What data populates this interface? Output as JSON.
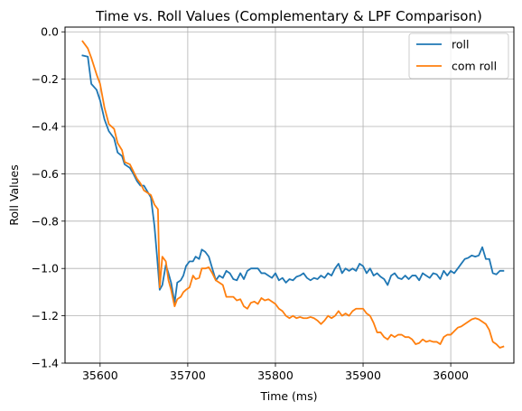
{
  "chart_data": {
    "type": "line",
    "title": "Time vs. Roll Values (Complementary & LPF Comparison)",
    "xlabel": "Time (ms)",
    "ylabel": "Roll Values",
    "xlim": [
      35560,
      36072
    ],
    "ylim": [
      -1.4,
      0.02
    ],
    "xticks": [
      35600,
      35700,
      35800,
      35900,
      36000
    ],
    "xtick_labels": [
      "35600",
      "35700",
      "35800",
      "35900",
      "36000"
    ],
    "yticks": [
      0.0,
      -0.2,
      -0.4,
      -0.6,
      -0.8,
      -1.0,
      -1.2,
      -1.4
    ],
    "ytick_labels": [
      "0.0",
      "−0.2",
      "−0.4",
      "−0.6",
      "−0.8",
      "−1.0",
      "−1.2",
      "−1.4"
    ],
    "grid": true,
    "legend_position": "top-right",
    "series": [
      {
        "name": "roll",
        "color": "#1f77b4",
        "points": [
          [
            35580,
            -0.1
          ],
          [
            35586,
            -0.105
          ],
          [
            35590,
            -0.22
          ],
          [
            35596,
            -0.245
          ],
          [
            35600,
            -0.29
          ],
          [
            35605,
            -0.37
          ],
          [
            35610,
            -0.42
          ],
          [
            35616,
            -0.45
          ],
          [
            35620,
            -0.51
          ],
          [
            35625,
            -0.525
          ],
          [
            35628,
            -0.56
          ],
          [
            35634,
            -0.575
          ],
          [
            35638,
            -0.6
          ],
          [
            35642,
            -0.63
          ],
          [
            35646,
            -0.65
          ],
          [
            35650,
            -0.65
          ],
          [
            35654,
            -0.675
          ],
          [
            35658,
            -0.7
          ],
          [
            35662,
            -0.82
          ],
          [
            35665,
            -0.95
          ],
          [
            35668,
            -1.09
          ],
          [
            35671,
            -1.07
          ],
          [
            35675,
            -0.985
          ],
          [
            35678,
            -1.02
          ],
          [
            35681,
            -1.06
          ],
          [
            35685,
            -1.145
          ],
          [
            35688,
            -1.06
          ],
          [
            35692,
            -1.05
          ],
          [
            35695,
            -1.03
          ],
          [
            35698,
            -0.99
          ],
          [
            35702,
            -0.97
          ],
          [
            35706,
            -0.97
          ],
          [
            35709,
            -0.95
          ],
          [
            35713,
            -0.96
          ],
          [
            35716,
            -0.92
          ],
          [
            35720,
            -0.93
          ],
          [
            35724,
            -0.95
          ],
          [
            35728,
            -1.0
          ],
          [
            35732,
            -1.05
          ],
          [
            35736,
            -1.03
          ],
          [
            35740,
            -1.04
          ],
          [
            35744,
            -1.01
          ],
          [
            35748,
            -1.02
          ],
          [
            35752,
            -1.045
          ],
          [
            35756,
            -1.05
          ],
          [
            35760,
            -1.02
          ],
          [
            35764,
            -1.045
          ],
          [
            35768,
            -1.01
          ],
          [
            35772,
            -1.0
          ],
          [
            35776,
            -1.0
          ],
          [
            35780,
            -1.0
          ],
          [
            35784,
            -1.02
          ],
          [
            35788,
            -1.02
          ],
          [
            35792,
            -1.03
          ],
          [
            35796,
            -1.04
          ],
          [
            35800,
            -1.02
          ],
          [
            35804,
            -1.05
          ],
          [
            35808,
            -1.04
          ],
          [
            35812,
            -1.06
          ],
          [
            35816,
            -1.045
          ],
          [
            35820,
            -1.05
          ],
          [
            35824,
            -1.035
          ],
          [
            35828,
            -1.03
          ],
          [
            35832,
            -1.02
          ],
          [
            35836,
            -1.04
          ],
          [
            35840,
            -1.05
          ],
          [
            35844,
            -1.04
          ],
          [
            35848,
            -1.045
          ],
          [
            35852,
            -1.03
          ],
          [
            35856,
            -1.04
          ],
          [
            35860,
            -1.02
          ],
          [
            35864,
            -1.03
          ],
          [
            35868,
            -1.0
          ],
          [
            35872,
            -0.98
          ],
          [
            35876,
            -1.02
          ],
          [
            35880,
            -1.0
          ],
          [
            35884,
            -1.01
          ],
          [
            35888,
            -1.0
          ],
          [
            35892,
            -1.01
          ],
          [
            35896,
            -0.98
          ],
          [
            35900,
            -0.99
          ],
          [
            35904,
            -1.02
          ],
          [
            35908,
            -1.0
          ],
          [
            35912,
            -1.03
          ],
          [
            35916,
            -1.02
          ],
          [
            35920,
            -1.035
          ],
          [
            35924,
            -1.045
          ],
          [
            35928,
            -1.07
          ],
          [
            35932,
            -1.03
          ],
          [
            35936,
            -1.02
          ],
          [
            35940,
            -1.04
          ],
          [
            35944,
            -1.045
          ],
          [
            35948,
            -1.03
          ],
          [
            35952,
            -1.045
          ],
          [
            35956,
            -1.03
          ],
          [
            35960,
            -1.03
          ],
          [
            35964,
            -1.05
          ],
          [
            35968,
            -1.02
          ],
          [
            35972,
            -1.03
          ],
          [
            35976,
            -1.04
          ],
          [
            35980,
            -1.02
          ],
          [
            35984,
            -1.025
          ],
          [
            35988,
            -1.045
          ],
          [
            35992,
            -1.01
          ],
          [
            35996,
            -1.03
          ],
          [
            36000,
            -1.01
          ],
          [
            36004,
            -1.02
          ],
          [
            36008,
            -1.0
          ],
          [
            36012,
            -0.98
          ],
          [
            36016,
            -0.96
          ],
          [
            36020,
            -0.955
          ],
          [
            36024,
            -0.945
          ],
          [
            36028,
            -0.95
          ],
          [
            36032,
            -0.945
          ],
          [
            36036,
            -0.91
          ],
          [
            36040,
            -0.96
          ],
          [
            36044,
            -0.96
          ],
          [
            36048,
            -1.02
          ],
          [
            36052,
            -1.025
          ],
          [
            36056,
            -1.01
          ],
          [
            36060,
            -1.01
          ]
        ]
      },
      {
        "name": "com roll",
        "color": "#ff7f0e",
        "points": [
          [
            35580,
            -0.04
          ],
          [
            35586,
            -0.07
          ],
          [
            35590,
            -0.11
          ],
          [
            35596,
            -0.18
          ],
          [
            35600,
            -0.22
          ],
          [
            35605,
            -0.32
          ],
          [
            35610,
            -0.39
          ],
          [
            35616,
            -0.41
          ],
          [
            35620,
            -0.47
          ],
          [
            35625,
            -0.5
          ],
          [
            35628,
            -0.55
          ],
          [
            35634,
            -0.56
          ],
          [
            35638,
            -0.59
          ],
          [
            35642,
            -0.62
          ],
          [
            35646,
            -0.64
          ],
          [
            35650,
            -0.67
          ],
          [
            35654,
            -0.68
          ],
          [
            35658,
            -0.69
          ],
          [
            35662,
            -0.73
          ],
          [
            35666,
            -0.75
          ],
          [
            35668,
            -1.08
          ],
          [
            35671,
            -0.95
          ],
          [
            35675,
            -0.97
          ],
          [
            35678,
            -1.05
          ],
          [
            35681,
            -1.09
          ],
          [
            35685,
            -1.16
          ],
          [
            35688,
            -1.13
          ],
          [
            35692,
            -1.12
          ],
          [
            35695,
            -1.1
          ],
          [
            35698,
            -1.09
          ],
          [
            35702,
            -1.08
          ],
          [
            35706,
            -1.03
          ],
          [
            35709,
            -1.045
          ],
          [
            35713,
            -1.04
          ],
          [
            35716,
            -1.0
          ],
          [
            35720,
            -1.0
          ],
          [
            35724,
            -0.995
          ],
          [
            35728,
            -1.02
          ],
          [
            35732,
            -1.05
          ],
          [
            35736,
            -1.06
          ],
          [
            35740,
            -1.07
          ],
          [
            35744,
            -1.12
          ],
          [
            35748,
            -1.12
          ],
          [
            35752,
            -1.12
          ],
          [
            35756,
            -1.135
          ],
          [
            35760,
            -1.13
          ],
          [
            35764,
            -1.16
          ],
          [
            35768,
            -1.17
          ],
          [
            35772,
            -1.145
          ],
          [
            35776,
            -1.14
          ],
          [
            35780,
            -1.15
          ],
          [
            35784,
            -1.125
          ],
          [
            35788,
            -1.135
          ],
          [
            35792,
            -1.13
          ],
          [
            35796,
            -1.14
          ],
          [
            35800,
            -1.15
          ],
          [
            35804,
            -1.17
          ],
          [
            35808,
            -1.18
          ],
          [
            35812,
            -1.2
          ],
          [
            35816,
            -1.21
          ],
          [
            35820,
            -1.2
          ],
          [
            35824,
            -1.21
          ],
          [
            35828,
            -1.205
          ],
          [
            35832,
            -1.21
          ],
          [
            35836,
            -1.21
          ],
          [
            35840,
            -1.205
          ],
          [
            35844,
            -1.21
          ],
          [
            35848,
            -1.22
          ],
          [
            35852,
            -1.235
          ],
          [
            35856,
            -1.22
          ],
          [
            35860,
            -1.2
          ],
          [
            35864,
            -1.21
          ],
          [
            35868,
            -1.2
          ],
          [
            35872,
            -1.18
          ],
          [
            35876,
            -1.2
          ],
          [
            35880,
            -1.19
          ],
          [
            35884,
            -1.2
          ],
          [
            35888,
            -1.18
          ],
          [
            35892,
            -1.17
          ],
          [
            35896,
            -1.17
          ],
          [
            35900,
            -1.17
          ],
          [
            35904,
            -1.19
          ],
          [
            35908,
            -1.2
          ],
          [
            35912,
            -1.23
          ],
          [
            35916,
            -1.27
          ],
          [
            35920,
            -1.27
          ],
          [
            35924,
            -1.29
          ],
          [
            35928,
            -1.3
          ],
          [
            35932,
            -1.28
          ],
          [
            35936,
            -1.29
          ],
          [
            35940,
            -1.28
          ],
          [
            35944,
            -1.28
          ],
          [
            35948,
            -1.29
          ],
          [
            35952,
            -1.29
          ],
          [
            35956,
            -1.3
          ],
          [
            35960,
            -1.32
          ],
          [
            35964,
            -1.315
          ],
          [
            35968,
            -1.3
          ],
          [
            35972,
            -1.31
          ],
          [
            35976,
            -1.305
          ],
          [
            35980,
            -1.31
          ],
          [
            35984,
            -1.31
          ],
          [
            35988,
            -1.32
          ],
          [
            35992,
            -1.29
          ],
          [
            35996,
            -1.28
          ],
          [
            36000,
            -1.28
          ],
          [
            36004,
            -1.265
          ],
          [
            36008,
            -1.25
          ],
          [
            36012,
            -1.245
          ],
          [
            36016,
            -1.235
          ],
          [
            36020,
            -1.225
          ],
          [
            36024,
            -1.215
          ],
          [
            36028,
            -1.21
          ],
          [
            36032,
            -1.215
          ],
          [
            36036,
            -1.225
          ],
          [
            36040,
            -1.235
          ],
          [
            36044,
            -1.26
          ],
          [
            36048,
            -1.31
          ],
          [
            36052,
            -1.32
          ],
          [
            36056,
            -1.335
          ],
          [
            36060,
            -1.33
          ]
        ]
      }
    ]
  }
}
